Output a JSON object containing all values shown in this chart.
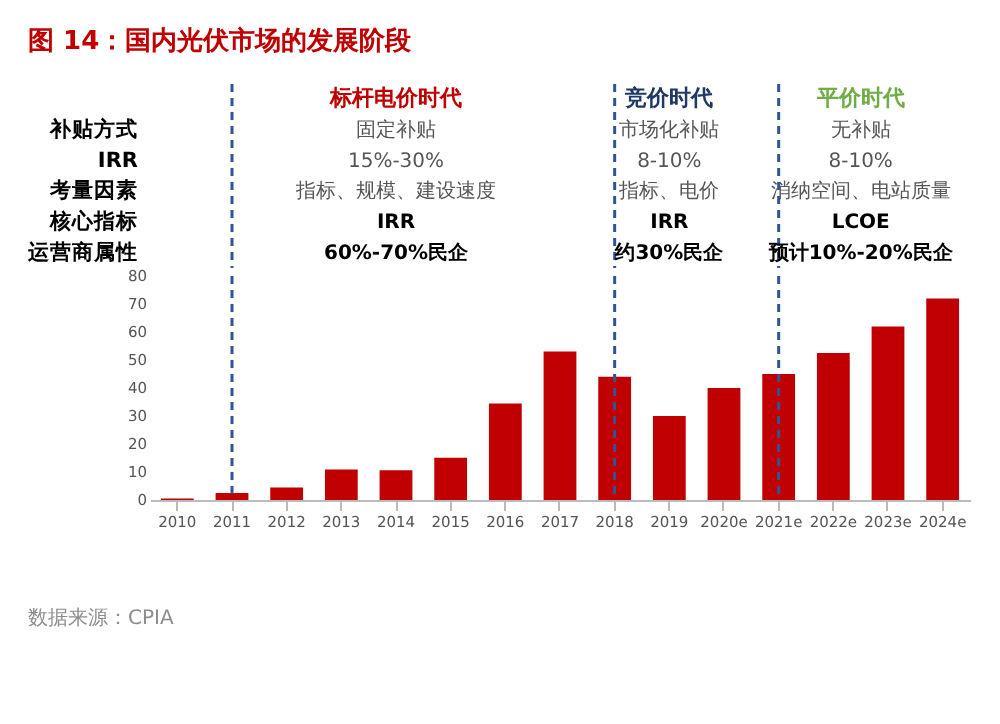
{
  "chart_data": {
    "type": "bar",
    "title": "图 14：国内光伏市场的发展阶段",
    "categories": [
      "2010",
      "2011",
      "2012",
      "2013",
      "2014",
      "2015",
      "2016",
      "2017",
      "2018",
      "2019",
      "2020e",
      "2021e",
      "2022e",
      "2023e",
      "2024e"
    ],
    "values": [
      0.5,
      2.5,
      4.5,
      10.9,
      10.6,
      15.1,
      34.5,
      53,
      44,
      30,
      40,
      45,
      52.5,
      62,
      72
    ],
    "color": "#c00000",
    "ylim": [
      0,
      80
    ],
    "yticks": [
      0,
      10,
      20,
      30,
      40,
      50,
      60,
      70,
      80
    ],
    "grid": false,
    "ref_lines": [
      {
        "axis": "x",
        "value": "2011",
        "color": "#2f5597",
        "line_style": "dashed"
      },
      {
        "axis": "x",
        "value": "2018",
        "color": "#2f5597",
        "line_style": "dashed"
      },
      {
        "axis": "x",
        "value": "2021e",
        "color": "#2f5597",
        "line_style": "dashed"
      }
    ],
    "annotations": [
      "标杆电价时代",
      "竞价时代",
      "平价时代",
      "补贴方式",
      "固定补贴",
      "市场化补贴",
      "无补贴",
      "IRR",
      "15%-30%",
      "8-10%",
      "8-10%",
      "考量因素",
      "指标、规模、建设速度",
      "指标、电价",
      "消纳空间、电站质量",
      "核心指标",
      "IRR",
      "IRR",
      "LCOE",
      "运营商属性",
      "60%-70%民企",
      "约30%民企",
      "预计10%-20%民企",
      "数据来源：CPIA"
    ]
  }
}
